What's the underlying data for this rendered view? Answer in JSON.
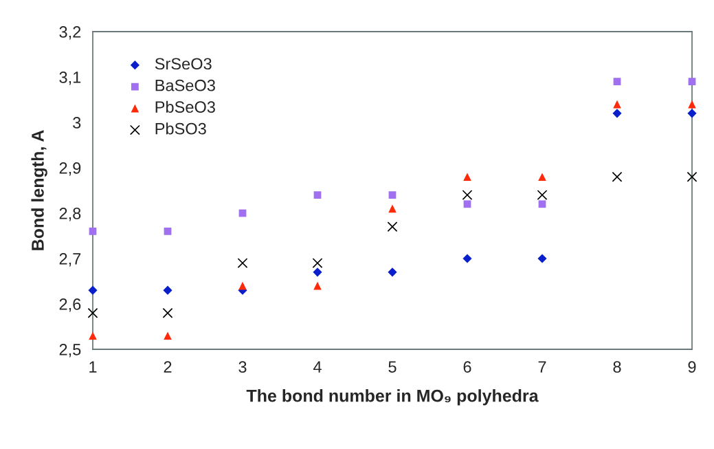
{
  "chart_data": {
    "type": "scatter",
    "xlabel": "The bond number in MO₉ polyhedra",
    "ylabel": "Bond length, A",
    "x": [
      1,
      2,
      3,
      4,
      5,
      6,
      7,
      8,
      9
    ],
    "series": [
      {
        "name": "SrSeO3",
        "color": "#0a1fcc",
        "marker": "diamond",
        "values": [
          2.63,
          2.63,
          2.63,
          2.67,
          2.67,
          2.7,
          2.7,
          3.02,
          3.02
        ]
      },
      {
        "name": "BaSeO3",
        "color": "#a070f0",
        "marker": "square",
        "values": [
          2.76,
          2.76,
          2.8,
          2.84,
          2.84,
          2.82,
          2.82,
          3.09,
          3.09
        ]
      },
      {
        "name": "PbSeO3",
        "color": "#ff2a0a",
        "marker": "triangle",
        "values": [
          2.53,
          2.53,
          2.64,
          2.64,
          2.81,
          2.88,
          2.88,
          3.04,
          3.04
        ]
      },
      {
        "name": "PbSO3",
        "color": "#000000",
        "marker": "cross",
        "values": [
          2.58,
          2.58,
          2.69,
          2.69,
          2.77,
          2.84,
          2.84,
          2.88,
          2.88
        ]
      }
    ],
    "xlim": [
      1,
      9
    ],
    "xticks": [
      1,
      2,
      3,
      4,
      5,
      6,
      7,
      8,
      9
    ],
    "ylim": [
      2.5,
      3.2
    ],
    "yticks": [
      {
        "value": 2.5,
        "label": "2,5"
      },
      {
        "value": 2.6,
        "label": "2,6"
      },
      {
        "value": 2.7,
        "label": "2,7"
      },
      {
        "value": 2.8,
        "label": "2,8"
      },
      {
        "value": 2.9,
        "label": "2,9"
      },
      3,
      {
        "value": 3.1,
        "label": "3,1"
      },
      {
        "value": 3.2,
        "label": "3,2"
      }
    ],
    "grid": false,
    "legend": "top left"
  }
}
